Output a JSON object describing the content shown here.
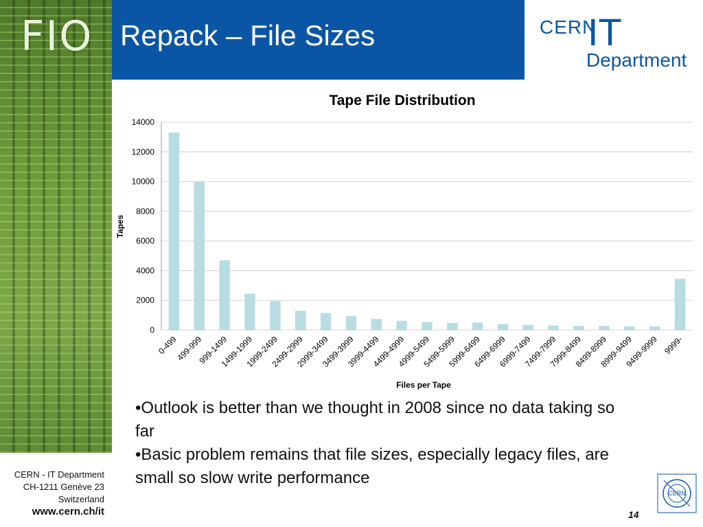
{
  "side": {
    "text": "FIO"
  },
  "header": {
    "title": "Repack – File Sizes",
    "logo_cern": "CERN",
    "logo_it": "IT",
    "logo_dept": "Department"
  },
  "colors": {
    "header": "#0b56a4",
    "bar": "#b7dde2",
    "grid": "#d0d0d0"
  },
  "chart_data": {
    "type": "bar",
    "title": "Tape File Distribution",
    "xlabel": "Files per Tape",
    "ylabel": "Tapes",
    "ylim": [
      0,
      14000
    ],
    "yticks": [
      0,
      2000,
      4000,
      6000,
      8000,
      10000,
      12000,
      14000
    ],
    "grid": true,
    "categories": [
      "0-499",
      "499-999",
      "999-1499",
      "1499-1999",
      "1999-2499",
      "2499-2999",
      "2999-3499",
      "3499-3999",
      "3999-4499",
      "4499-4999",
      "4999-5499",
      "5499-5999",
      "5999-6499",
      "6499-6999",
      "6999-7499",
      "7499-7999",
      "7999-8499",
      "8499-8999",
      "8999-9499",
      "9499-9999",
      "9999-"
    ],
    "values": [
      13300,
      10000,
      4700,
      2450,
      1950,
      1300,
      1150,
      950,
      750,
      620,
      550,
      480,
      500,
      400,
      350,
      300,
      270,
      270,
      250,
      250,
      3450
    ]
  },
  "bullets": [
    "•Outlook is better than we thought in 2008 since no data taking so far",
    "•Basic problem remains that file sizes, especially legacy files, are small so slow write performance"
  ],
  "footer": {
    "line1": "CERN - IT Department",
    "line2": "CH-1211 Genève 23",
    "line3": "Switzerland",
    "url": "www.cern.ch/it"
  },
  "page_number": "14",
  "emblem_text": "CERN"
}
